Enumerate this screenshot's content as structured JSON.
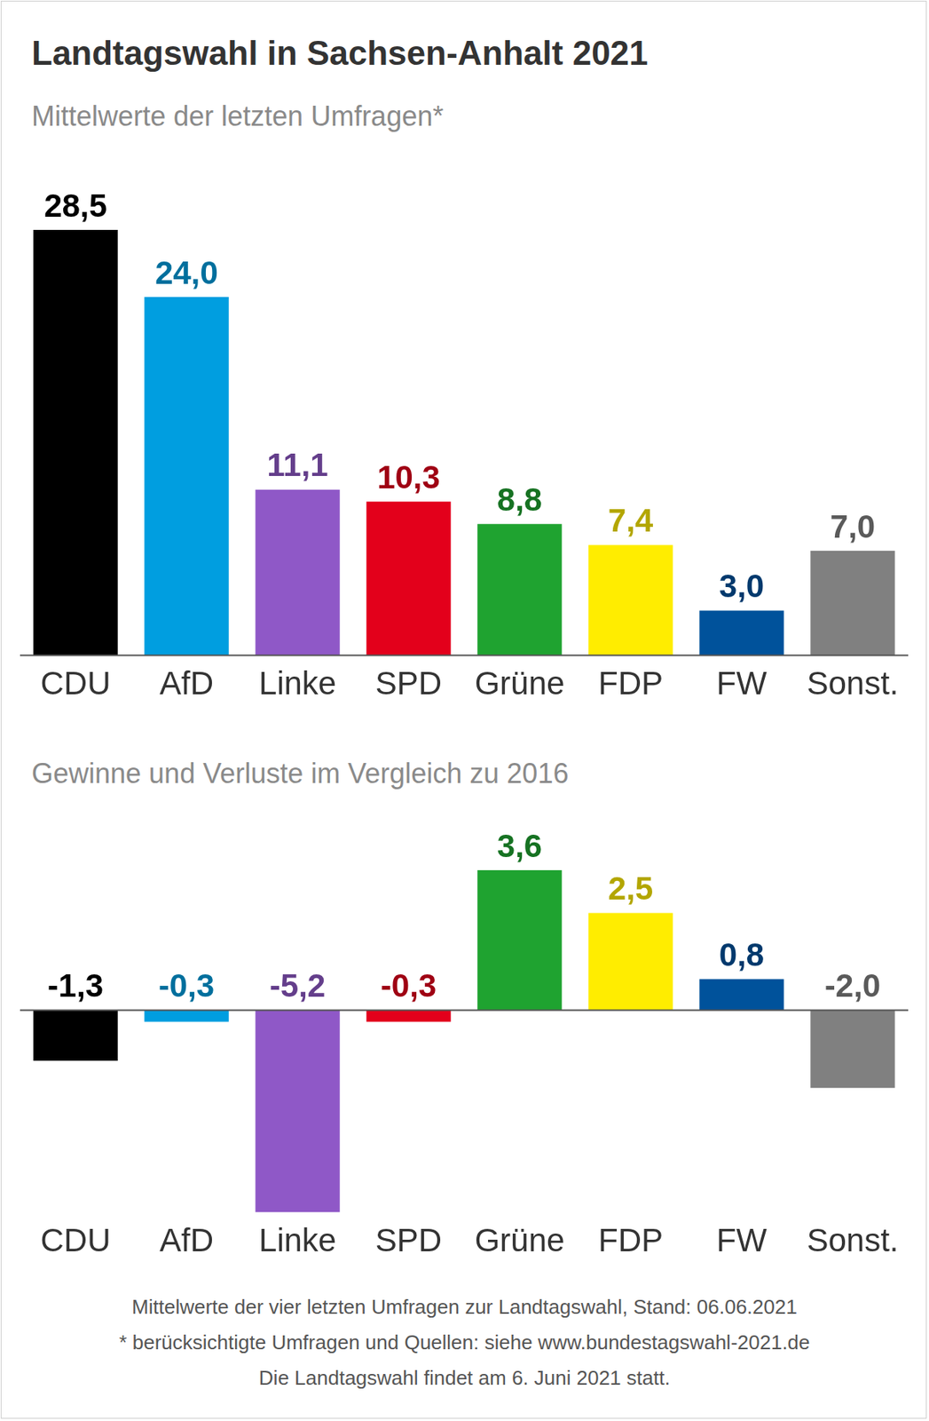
{
  "title": "Landtagswahl in Sachsen-Anhalt 2021",
  "chart_data": [
    {
      "type": "bar",
      "subtitle": "Mittelwerte der letzten Umfragen*",
      "categories": [
        "CDU",
        "AfD",
        "Linke",
        "SPD",
        "Grüne",
        "FDP",
        "FW",
        "Sonst."
      ],
      "values": [
        28.5,
        24.0,
        11.1,
        10.3,
        8.8,
        7.4,
        3.0,
        7.0
      ],
      "value_labels": [
        "28,5",
        "24,0",
        "11,1",
        "10,3",
        "8,8",
        "7,4",
        "3,0",
        "7,0"
      ],
      "colors": [
        "#000000",
        "#009ee0",
        "#8f58c7",
        "#e3001b",
        "#1fa330",
        "#ffed00",
        "#00529b",
        "#808080"
      ],
      "ylim": [
        0,
        28.5
      ],
      "grid": false,
      "data_labels": true,
      "tick_labels": "x"
    },
    {
      "type": "bar",
      "subtitle": "Gewinne und Verluste im Vergleich zu 2016",
      "categories": [
        "CDU",
        "AfD",
        "Linke",
        "SPD",
        "Grüne",
        "FDP",
        "FW",
        "Sonst."
      ],
      "values": [
        -1.3,
        -0.3,
        -5.2,
        -0.3,
        3.6,
        2.5,
        0.8,
        -2.0
      ],
      "value_labels": [
        "-1,3",
        "-0,3",
        "-5,2",
        "-0,3",
        "3,6",
        "2,5",
        "0,8",
        "-2,0"
      ],
      "colors": [
        "#000000",
        "#009ee0",
        "#8f58c7",
        "#e3001b",
        "#1fa330",
        "#ffed00",
        "#00529b",
        "#808080"
      ],
      "ylim": [
        -5.2,
        3.6
      ],
      "grid": false,
      "data_labels": true,
      "tick_labels": "x"
    }
  ],
  "footer": [
    "Mittelwerte der vier letzten Umfragen zur Landtagswahl, Stand: 06.06.2021",
    "* berücksichtigte Umfragen und Quellen: siehe www.bundestagswahl-2021.de",
    "Die Landtagswahl findet am 6. Juni 2021 statt."
  ]
}
